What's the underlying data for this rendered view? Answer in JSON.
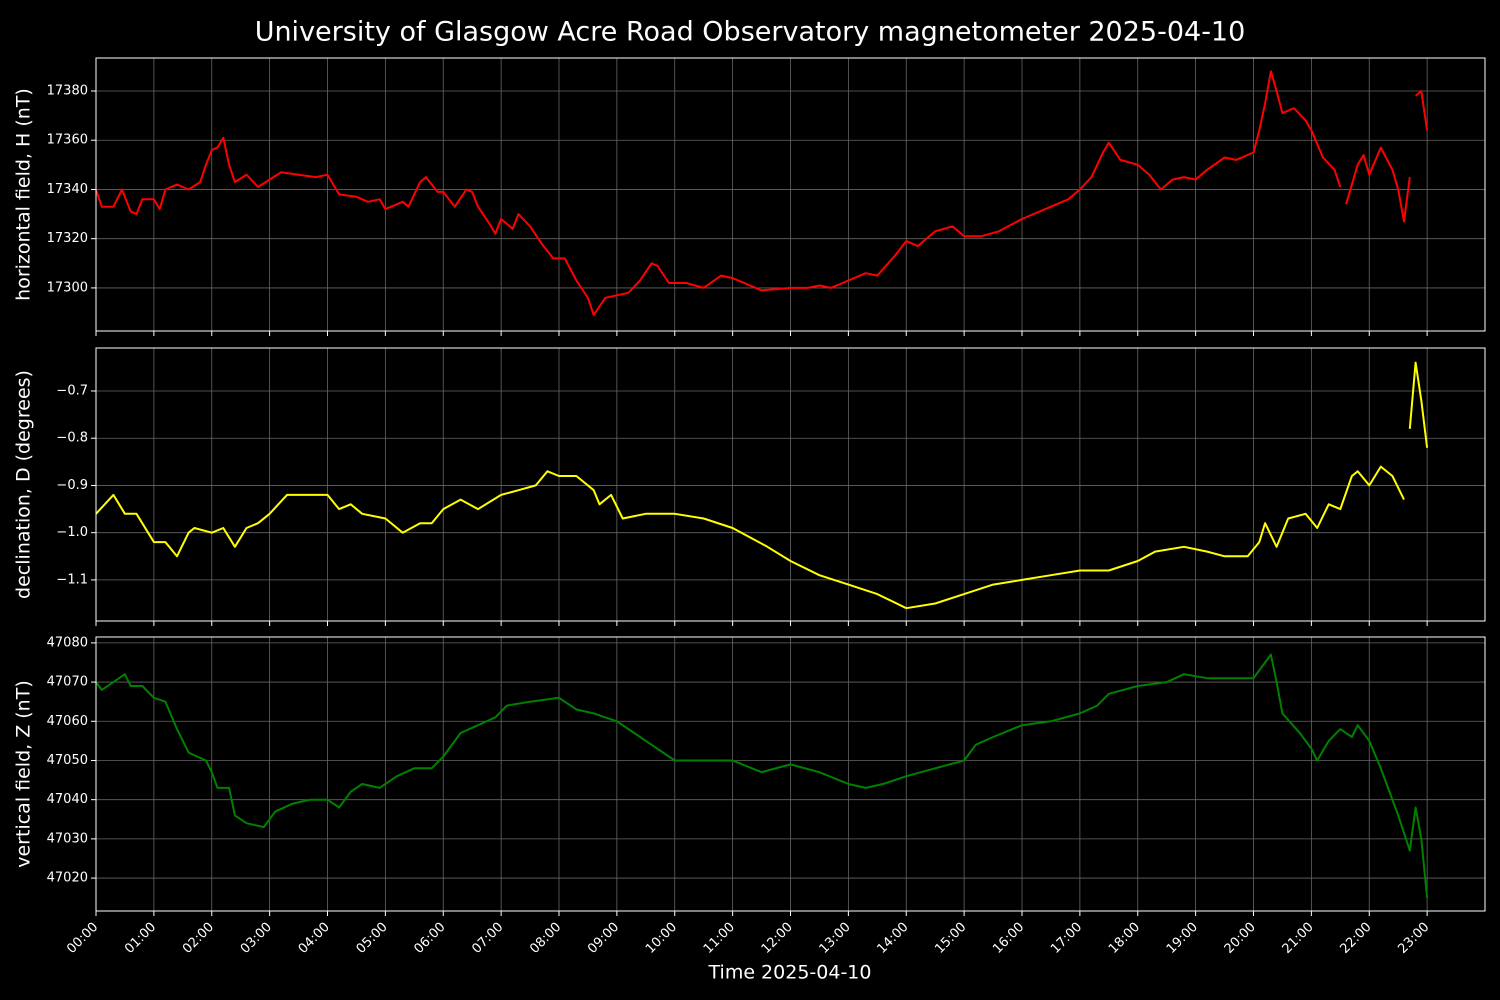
{
  "chart_data": [
    {
      "type": "line",
      "title": "University of Glasgow Acre Road Observatory magnetometer 2025-04-10",
      "ylabel": "horizontal field, H (nT)",
      "color": "#ff0000",
      "ylim": [
        17282.5,
        17393.4
      ],
      "yticks": [
        17300,
        17320,
        17340,
        17360,
        17380
      ],
      "grid": true,
      "x": [
        0,
        0.1,
        0.3,
        0.45,
        0.6,
        0.7,
        0.8,
        1.0,
        1.1,
        1.2,
        1.4,
        1.6,
        1.8,
        1.9,
        2.0,
        2.1,
        2.2,
        2.3,
        2.4,
        2.6,
        2.8,
        3.0,
        3.2,
        3.5,
        3.8,
        4.0,
        4.2,
        4.5,
        4.7,
        4.9,
        5.0,
        5.3,
        5.4,
        5.6,
        5.7,
        5.9,
        6.0,
        6.2,
        6.4,
        6.5,
        6.6,
        6.8,
        6.9,
        7.0,
        7.2,
        7.3,
        7.5,
        7.7,
        7.9,
        8.1,
        8.3,
        8.5,
        8.6,
        8.8,
        9.0,
        9.2,
        9.4,
        9.6,
        9.7,
        9.9,
        10.2,
        10.5,
        10.8,
        11.0,
        11.3,
        11.5,
        12.0,
        12.3,
        12.5,
        12.7,
        13.0,
        13.3,
        13.5,
        13.8,
        14.0,
        14.2,
        14.5,
        14.8,
        15.0,
        15.3,
        15.6,
        16.0,
        16.5,
        16.8,
        17.0,
        17.2,
        17.4,
        17.5,
        17.7,
        18.0,
        18.2,
        18.4,
        18.6,
        18.8,
        19.0,
        19.2,
        19.5,
        19.7,
        20.0,
        20.1,
        20.2,
        20.3,
        20.4,
        20.5,
        20.7,
        20.9,
        21.0,
        21.2,
        21.4,
        21.5,
        21.55,
        21.6,
        21.8,
        21.9,
        22.0,
        22.2,
        22.4,
        22.5,
        22.6,
        22.7,
        22.75,
        22.8,
        22.9,
        23.0
      ],
      "values": [
        17340,
        17333,
        17333,
        17340,
        17331,
        17330,
        17336,
        17336,
        17332,
        17340,
        17342,
        17340,
        17343,
        17350,
        17356,
        17357,
        17361,
        17350,
        17343,
        17346,
        17341,
        17344,
        17347,
        17346,
        17345,
        17346,
        17338,
        17337,
        17335,
        17336,
        17332,
        17335,
        17333,
        17343,
        17345,
        17339,
        17339,
        17333,
        17340,
        17339,
        17333,
        17326,
        17322,
        17328,
        17324,
        17330,
        17325,
        17318,
        17312,
        17312,
        17303,
        17296,
        17289,
        17296,
        17297,
        17298,
        17303,
        17310,
        17309,
        17302,
        17302,
        17300,
        17305,
        17304,
        17301,
        17299,
        17300,
        17300,
        17301,
        17300,
        17303,
        17306,
        17305,
        17313,
        17319,
        17317,
        17323,
        17325,
        17321,
        17321,
        17323,
        17328,
        17333,
        17336,
        17340,
        17345,
        17355,
        17359,
        17352,
        17350,
        17346,
        17340,
        17344,
        17345,
        17344,
        17348,
        17353,
        17352,
        17355,
        17364,
        17375,
        17388,
        17380,
        17371,
        17373,
        17368,
        17364,
        17353,
        17348,
        17341,
        null,
        17334,
        17350,
        17354,
        17346,
        17357,
        17348,
        17340,
        17327,
        17345,
        null,
        17378,
        17380,
        17364
      ]
    },
    {
      "type": "line",
      "ylabel": "declination, D (degrees)",
      "color": "#ffff00",
      "ylim": [
        -1.187,
        -0.609
      ],
      "yticks": [
        {
          "value": -1.1,
          "label": "−1.1"
        },
        {
          "value": -1.0,
          "label": "−1.0"
        },
        {
          "value": -0.9,
          "label": "−0.9"
        },
        {
          "value": -0.8,
          "label": "−0.8"
        },
        {
          "value": -0.7,
          "label": "−0.7"
        }
      ],
      "grid": true,
      "x": [
        0,
        0.3,
        0.5,
        0.7,
        0.9,
        1.0,
        1.2,
        1.4,
        1.6,
        1.7,
        2.0,
        2.2,
        2.4,
        2.6,
        2.8,
        3.0,
        3.3,
        3.6,
        4.0,
        4.2,
        4.4,
        4.6,
        5.0,
        5.3,
        5.6,
        5.8,
        6.0,
        6.3,
        6.6,
        7.0,
        7.3,
        7.6,
        7.8,
        8.0,
        8.3,
        8.6,
        8.7,
        8.9,
        9.1,
        9.5,
        10.0,
        10.5,
        11.0,
        11.3,
        11.6,
        12.0,
        12.5,
        13.0,
        13.5,
        14.0,
        14.5,
        15.0,
        15.5,
        16.0,
        16.5,
        17.0,
        17.5,
        18.0,
        18.3,
        18.8,
        19.2,
        19.5,
        19.9,
        20.1,
        20.2,
        20.4,
        20.6,
        20.9,
        21.1,
        21.3,
        21.5,
        21.7,
        21.8,
        22.0,
        22.2,
        22.4,
        22.6,
        22.65,
        22.7,
        22.8,
        22.9,
        23.0
      ],
      "values": [
        -0.96,
        -0.92,
        -0.96,
        -0.96,
        -1.0,
        -1.02,
        -1.02,
        -1.05,
        -1.0,
        -0.99,
        -1.0,
        -0.99,
        -1.03,
        -0.99,
        -0.98,
        -0.96,
        -0.92,
        -0.92,
        -0.92,
        -0.95,
        -0.94,
        -0.96,
        -0.97,
        -1.0,
        -0.98,
        -0.98,
        -0.95,
        -0.93,
        -0.95,
        -0.92,
        -0.91,
        -0.9,
        -0.87,
        -0.88,
        -0.88,
        -0.91,
        -0.94,
        -0.92,
        -0.97,
        -0.96,
        -0.96,
        -0.97,
        -0.99,
        -1.01,
        -1.03,
        -1.06,
        -1.09,
        -1.11,
        -1.13,
        -1.16,
        -1.15,
        -1.13,
        -1.11,
        -1.1,
        -1.09,
        -1.08,
        -1.08,
        -1.06,
        -1.04,
        -1.03,
        -1.04,
        -1.05,
        -1.05,
        -1.02,
        -0.98,
        -1.03,
        -0.97,
        -0.96,
        -0.99,
        -0.94,
        -0.95,
        -0.88,
        -0.87,
        -0.9,
        -0.86,
        -0.88,
        -0.93,
        null,
        -0.78,
        -0.64,
        -0.72,
        -0.82
      ]
    },
    {
      "type": "line",
      "ylabel": "vertical field, Z (nT)",
      "xlabel": "Time 2025-04-10",
      "color": "#008000",
      "ylim": [
        47011.6,
        47081.5
      ],
      "yticks": [
        47020,
        47030,
        47040,
        47050,
        47060,
        47070,
        47080
      ],
      "grid": true,
      "xlim": [
        0,
        24
      ],
      "xticks": [
        {
          "value": 0,
          "label": "00:00"
        },
        {
          "value": 1,
          "label": "01:00"
        },
        {
          "value": 2,
          "label": "02:00"
        },
        {
          "value": 3,
          "label": "03:00"
        },
        {
          "value": 4,
          "label": "04:00"
        },
        {
          "value": 5,
          "label": "05:00"
        },
        {
          "value": 6,
          "label": "06:00"
        },
        {
          "value": 7,
          "label": "07:00"
        },
        {
          "value": 8,
          "label": "08:00"
        },
        {
          "value": 9,
          "label": "09:00"
        },
        {
          "value": 10,
          "label": "10:00"
        },
        {
          "value": 11,
          "label": "11:00"
        },
        {
          "value": 12,
          "label": "12:00"
        },
        {
          "value": 13,
          "label": "13:00"
        },
        {
          "value": 14,
          "label": "14:00"
        },
        {
          "value": 15,
          "label": "15:00"
        },
        {
          "value": 16,
          "label": "16:00"
        },
        {
          "value": 17,
          "label": "17:00"
        },
        {
          "value": 18,
          "label": "18:00"
        },
        {
          "value": 19,
          "label": "19:00"
        },
        {
          "value": 20,
          "label": "20:00"
        },
        {
          "value": 21,
          "label": "21:00"
        },
        {
          "value": 22,
          "label": "22:00"
        },
        {
          "value": 23,
          "label": "23:00"
        }
      ],
      "x": [
        0,
        0.1,
        0.3,
        0.5,
        0.6,
        0.8,
        1.0,
        1.2,
        1.4,
        1.6,
        1.9,
        2.0,
        2.1,
        2.3,
        2.4,
        2.6,
        2.9,
        3.1,
        3.4,
        3.7,
        4.0,
        4.2,
        4.4,
        4.6,
        4.9,
        5.2,
        5.5,
        5.8,
        6.0,
        6.3,
        6.6,
        6.9,
        7.1,
        7.5,
        8.0,
        8.3,
        8.6,
        9.0,
        9.3,
        9.6,
        10.0,
        10.5,
        11.0,
        11.5,
        12.0,
        12.5,
        13.0,
        13.3,
        13.6,
        14.0,
        14.5,
        15.0,
        15.2,
        15.5,
        16.0,
        16.5,
        17.0,
        17.3,
        17.5,
        18.0,
        18.5,
        18.8,
        19.2,
        19.6,
        20.0,
        20.2,
        20.3,
        20.4,
        20.5,
        20.8,
        21.0,
        21.1,
        21.3,
        21.5,
        21.7,
        21.8,
        22.0,
        22.2,
        22.5,
        22.7,
        22.8,
        22.9,
        23.0
      ],
      "values": [
        47070,
        47068,
        47070,
        47072,
        47069,
        47069,
        47066,
        47065,
        47058,
        47052,
        47050,
        47047,
        47043,
        47043,
        47036,
        47034,
        47033,
        47037,
        47039,
        47040,
        47040,
        47038,
        47042,
        47044,
        47043,
        47046,
        47048,
        47048,
        47051,
        47057,
        47059,
        47061,
        47064,
        47065,
        47066,
        47063,
        47062,
        47060,
        47057,
        47054,
        47050,
        47050,
        47050,
        47047,
        47049,
        47047,
        47044,
        47043,
        47044,
        47046,
        47048,
        47050,
        47054,
        47056,
        47059,
        47060,
        47062,
        47064,
        47067,
        47069,
        47070,
        47072,
        47071,
        47071,
        47071,
        47075,
        47077,
        47070,
        47062,
        47057,
        47053,
        47050,
        47055,
        47058,
        47056,
        47059,
        47055,
        47048,
        47036,
        47027,
        47038,
        47030,
        47015
      ]
    }
  ]
}
